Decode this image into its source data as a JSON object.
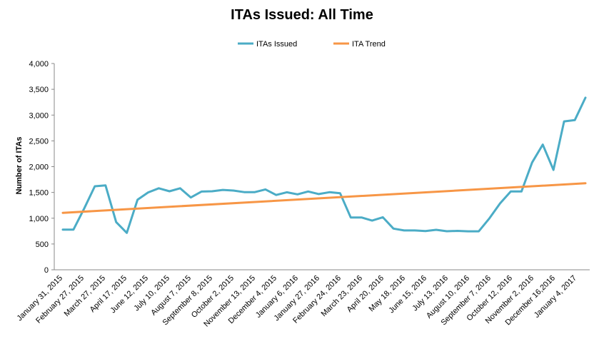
{
  "chart_data": {
    "type": "line",
    "title": "ITAs Issued: All Time",
    "xlabel": "",
    "ylabel": "Number of ITAs",
    "ylim": [
      0,
      4000
    ],
    "y_ticks": [
      "0",
      "500",
      "1,000",
      "1,500",
      "2,000",
      "2,500",
      "3,000",
      "3,500",
      "4,000"
    ],
    "x_tick_labels": [
      "January 31, 2015",
      "February 27, 2015",
      "March 27, 2015",
      "April 17, 2015",
      "June 12, 2015",
      "July 10, 2015",
      "August 7, 2015",
      "September 8, 2015",
      "October 2, 2015",
      "November 13, 2015",
      "December 4, 2015",
      "January 6, 2016",
      "January 27, 2016",
      "February 24, 2016",
      "March 23, 2016",
      "April 20, 2016",
      "May 18, 2016",
      "June 15, 2016",
      "July 13, 2016",
      "August 10, 2016",
      "September 7, 2016",
      "October 12, 2016",
      "November 2, 2016",
      "December 16,2016",
      "January 4, 2017"
    ],
    "grid": false,
    "legend_position": "top",
    "series": [
      {
        "name": "ITAs Issued",
        "color": "#4bacc6",
        "values": [
          779,
          779,
          1187,
          1620,
          1637,
          925,
          715,
          1358,
          1501,
          1581,
          1523,
          1581,
          1402,
          1517,
          1523,
          1549,
          1536,
          1506,
          1506,
          1559,
          1451,
          1503,
          1463,
          1518,
          1468,
          1505,
          1484,
          1013,
          1014,
          954,
          1018,
          799,
          762,
          762,
          750,
          775,
          747,
          754,
          746,
          746,
          1000,
          1288,
          1518,
          1518,
          2080,
          2427,
          1936,
          2878,
          2902,
          3337
        ]
      },
      {
        "name": "ITA Trend",
        "color": "#f79646",
        "values": [
          1105,
          1677
        ]
      }
    ]
  }
}
